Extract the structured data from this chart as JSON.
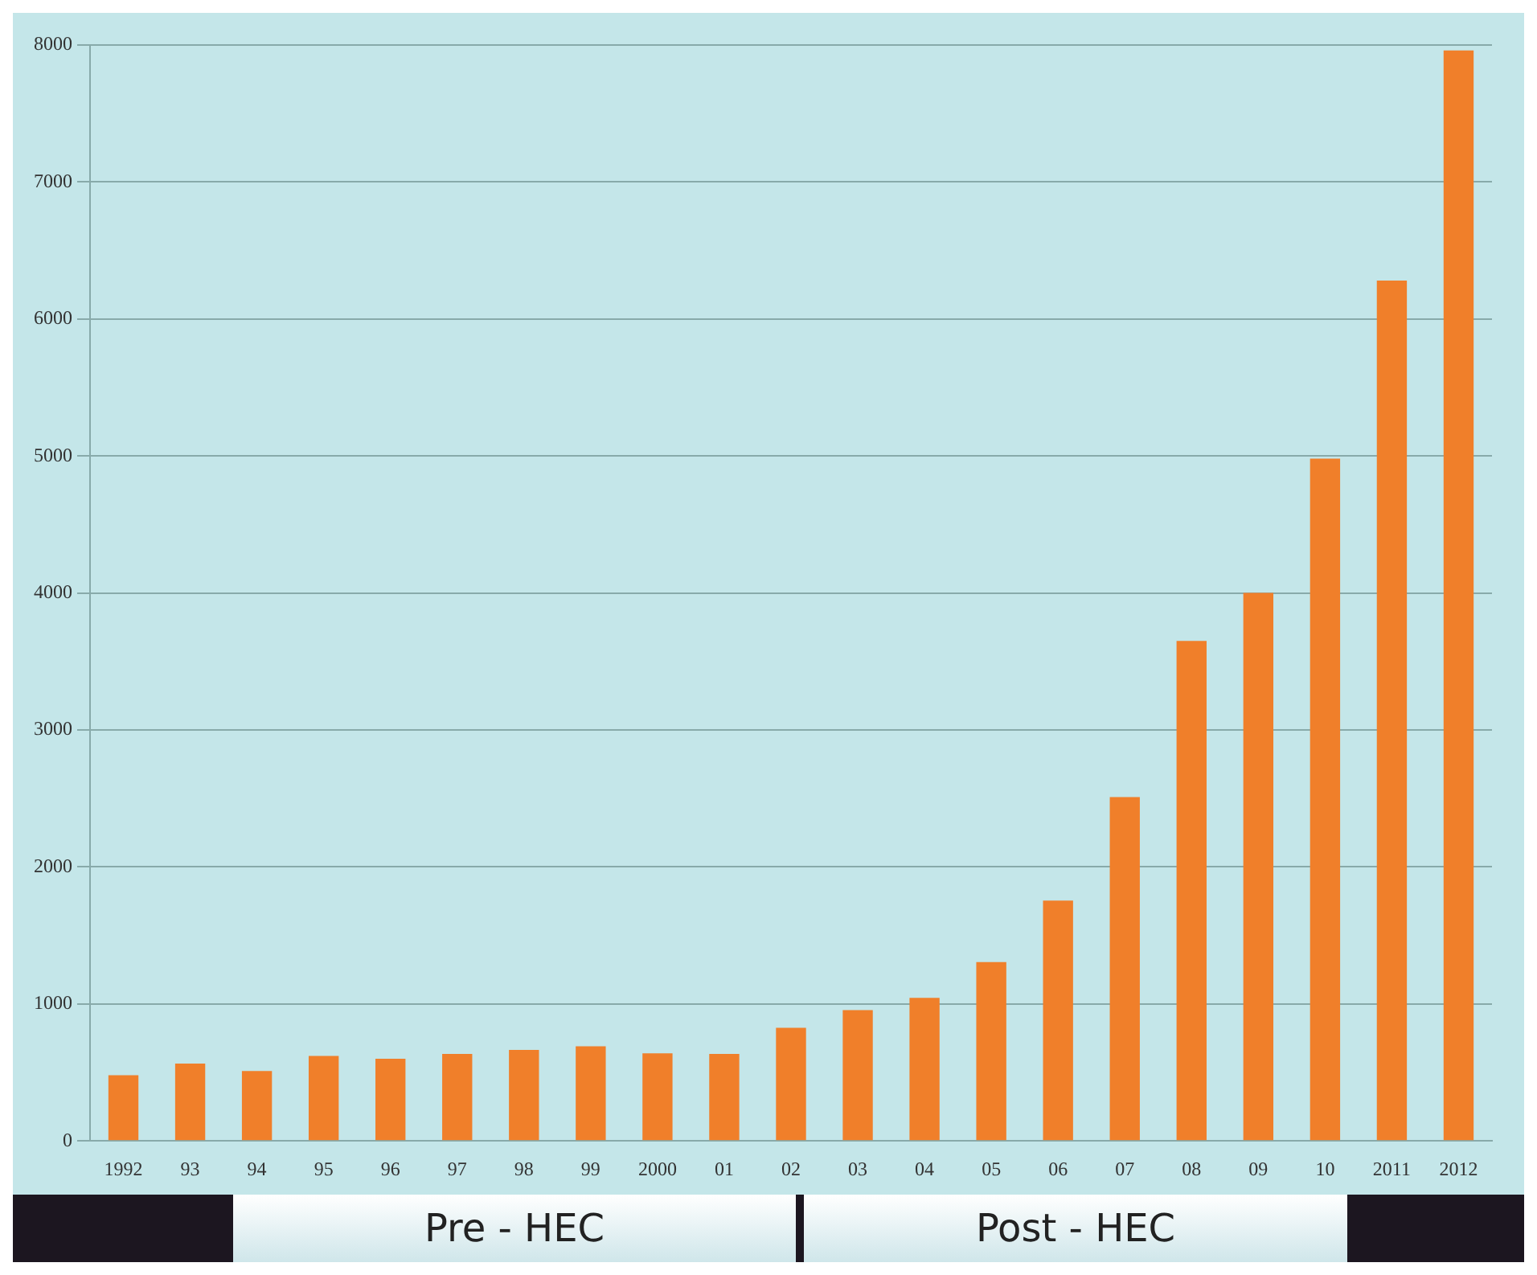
{
  "chart_data": {
    "type": "bar",
    "categories": [
      "1992",
      "93",
      "94",
      "95",
      "96",
      "97",
      "98",
      "99",
      "2000",
      "01",
      "02",
      "03",
      "04",
      "05",
      "06",
      "07",
      "08",
      "09",
      "10",
      "2011",
      "2012"
    ],
    "values": [
      480,
      565,
      510,
      620,
      600,
      635,
      665,
      690,
      640,
      635,
      825,
      955,
      1045,
      1305,
      1755,
      2510,
      3650,
      4000,
      4980,
      6280,
      7960
    ],
    "color": "#f07f2a",
    "ylim": [
      0,
      8000
    ],
    "yticks": [
      0,
      1000,
      2000,
      3000,
      4000,
      5000,
      6000,
      7000,
      8000
    ],
    "grid": "y",
    "annotations": [
      "Pre - HEC",
      "Post - HEC"
    ]
  }
}
